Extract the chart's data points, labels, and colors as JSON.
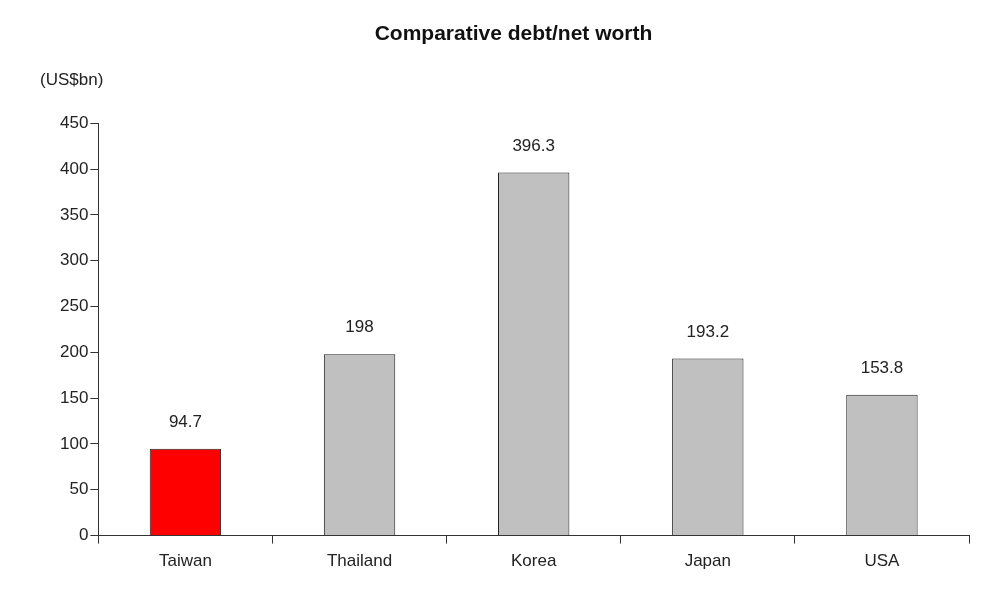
{
  "chart_data": {
    "type": "bar",
    "title": "Comparative debt/net worth",
    "ylabel": "(US$bn)",
    "categories": [
      "Taiwan",
      "Thailand",
      "Korea",
      "Japan",
      "USA"
    ],
    "values": [
      94.7,
      198,
      396.3,
      193.2,
      153.8
    ],
    "colors": [
      "#ff0000",
      "#c0c0c0",
      "#c0c0c0",
      "#c0c0c0",
      "#c0c0c0"
    ],
    "ylim": [
      0,
      450
    ],
    "yticks": [
      0,
      50,
      100,
      150,
      200,
      250,
      300,
      350,
      400,
      450
    ],
    "data_labels": true,
    "grid": false,
    "legend": false
  }
}
